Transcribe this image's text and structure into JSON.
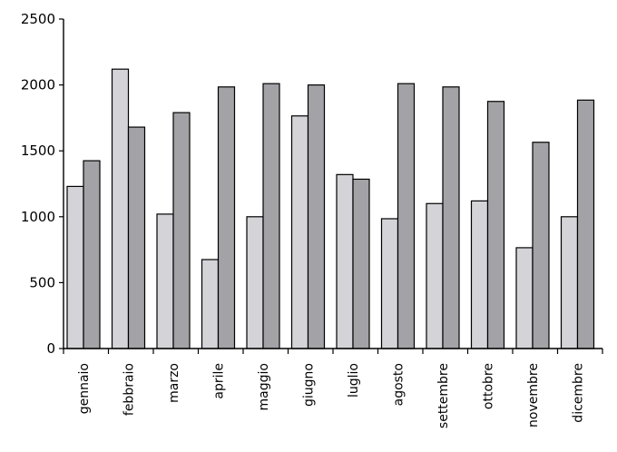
{
  "chart_data": {
    "type": "bar",
    "title": "",
    "xlabel": "",
    "ylabel": "",
    "categories": [
      "gennaio",
      "febbraio",
      "marzo",
      "aprile",
      "maggio",
      "giugno",
      "luglio",
      "agosto",
      "settembre",
      "ottobre",
      "novembre",
      "dicembre"
    ],
    "series": [
      {
        "values": [
          1230,
          2120,
          1020,
          675,
          1000,
          1765,
          1320,
          985,
          1100,
          1120,
          765,
          1000
        ]
      },
      {
        "values": [
          1425,
          1680,
          1790,
          1985,
          2010,
          2000,
          1285,
          2010,
          1985,
          1875,
          1565,
          1885
        ]
      }
    ],
    "ylim": [
      0,
      2500
    ],
    "yticks": [
      0,
      500,
      1000,
      1500,
      2000,
      2500
    ],
    "grid": false,
    "legend": "none",
    "colors": [
      "#d4d4d8",
      "#a3a3a7"
    ]
  }
}
